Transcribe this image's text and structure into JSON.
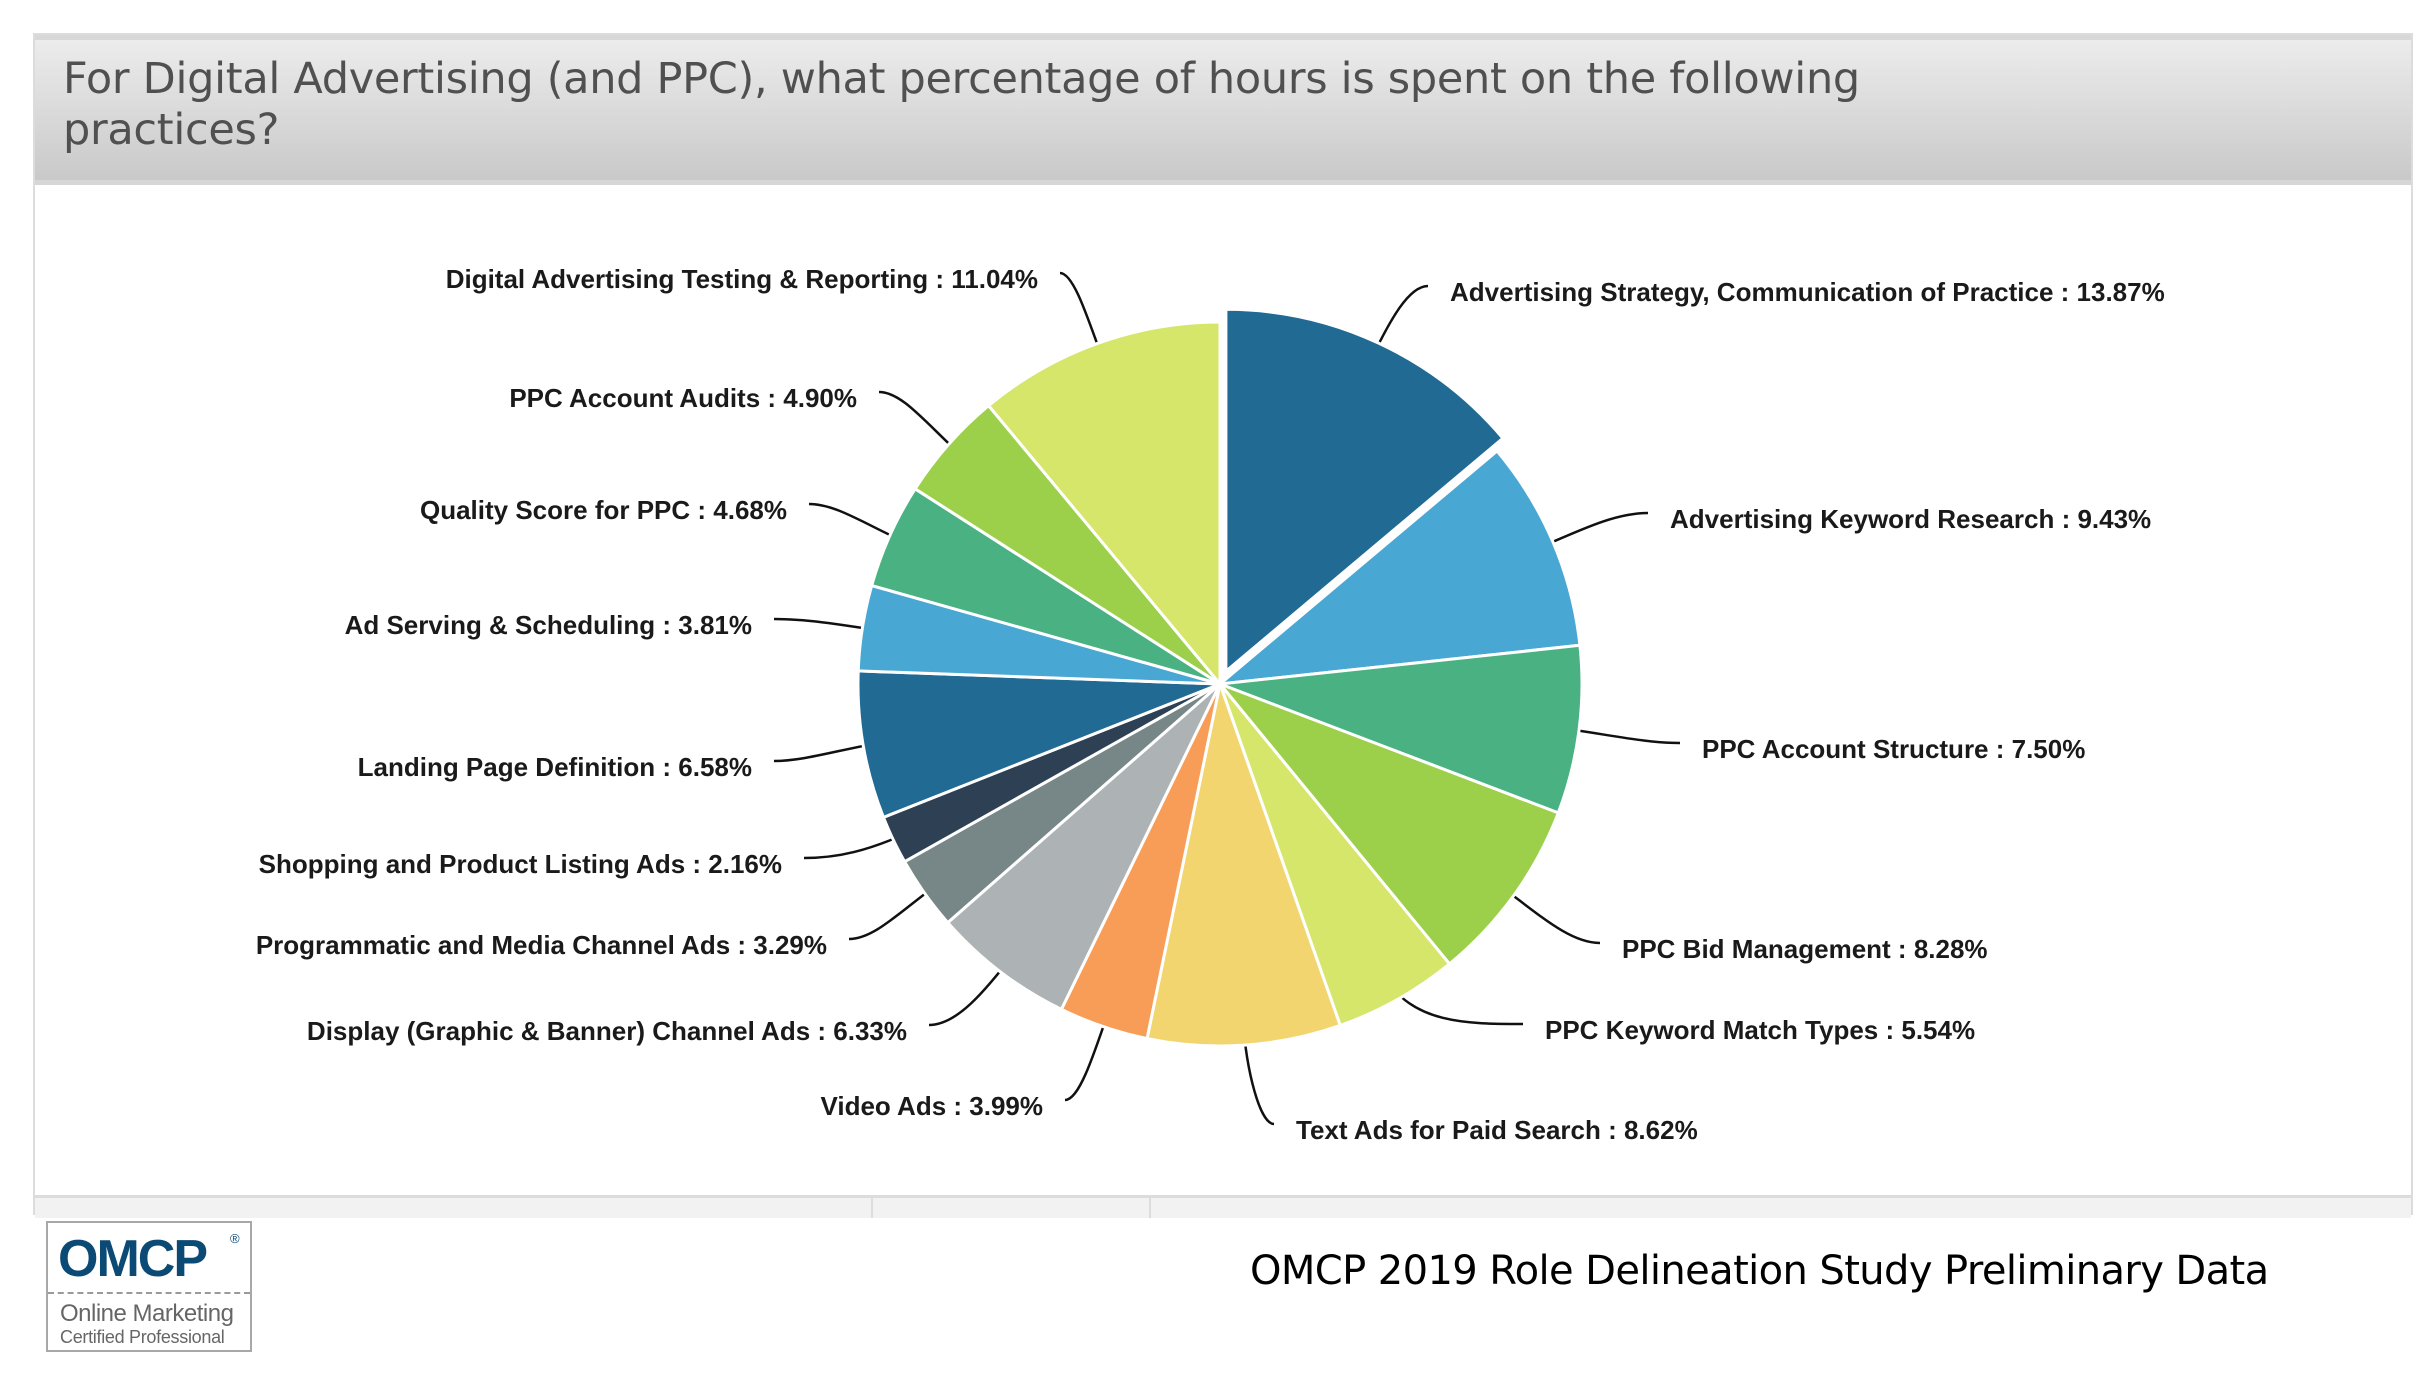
{
  "header": {
    "title": "For Digital Advertising (and PPC), what percentage of hours is spent on the following practices?"
  },
  "footer": {
    "text": "OMCP 2019 Role Delineation Study Preliminary Data"
  },
  "logo": {
    "mark": "OMCP",
    "registered": "®",
    "line1": "Online Marketing",
    "line2": "Certified Professional",
    "brand_color": "#0b4a75"
  },
  "chart_data": {
    "type": "pie",
    "title": "For Digital Advertising (and PPC), what percentage of hours is spent on the following practices?",
    "unit": "%",
    "label_separator": " : ",
    "exploded": [
      "Advertising Strategy, Communication of Practice"
    ],
    "start": "top",
    "direction": "clockwise",
    "slices": [
      {
        "label": "Advertising Strategy, Communication of Practice",
        "value": 13.87,
        "display": "13.87%",
        "color": "#216a94"
      },
      {
        "label": "Advertising Keyword Research",
        "value": 9.43,
        "display": "9.43%",
        "color": "#49a7d4"
      },
      {
        "label": "PPC Account Structure",
        "value": 7.5,
        "display": "7.50%",
        "color": "#4ab282"
      },
      {
        "label": "PPC Bid Management",
        "value": 8.28,
        "display": "8.28%",
        "color": "#9ccf4a"
      },
      {
        "label": "PPC Keyword Match Types",
        "value": 5.54,
        "display": "5.54%",
        "color": "#d6e66a"
      },
      {
        "label": "Text Ads for Paid Search",
        "value": 8.62,
        "display": "8.62%",
        "color": "#f3d56f"
      },
      {
        "label": "Video Ads",
        "value": 3.99,
        "display": "3.99%",
        "color": "#f89d58"
      },
      {
        "label": "Display (Graphic & Banner) Channel Ads",
        "value": 6.33,
        "display": "6.33%",
        "color": "#adb3b4"
      },
      {
        "label": "Programmatic and Media Channel Ads",
        "value": 3.29,
        "display": "3.29%",
        "color": "#778787"
      },
      {
        "label": "Shopping and Product Listing Ads",
        "value": 2.16,
        "display": "2.16%",
        "color": "#2e4154"
      },
      {
        "label": "Landing Page Definition",
        "value": 6.58,
        "display": "6.58%",
        "color": "#216a94"
      },
      {
        "label": "Ad Serving & Scheduling",
        "value": 3.81,
        "display": "3.81%",
        "color": "#49a7d4"
      },
      {
        "label": "Quality Score for PPC",
        "value": 4.68,
        "display": "4.68%",
        "color": "#4ab282"
      },
      {
        "label": "PPC Account Audits",
        "value": 4.9,
        "display": "4.90%",
        "color": "#9ccf4a"
      },
      {
        "label": "Digital Advertising Testing & Reporting",
        "value": 11.04,
        "display": "11.04%",
        "color": "#d6e66a"
      }
    ]
  }
}
